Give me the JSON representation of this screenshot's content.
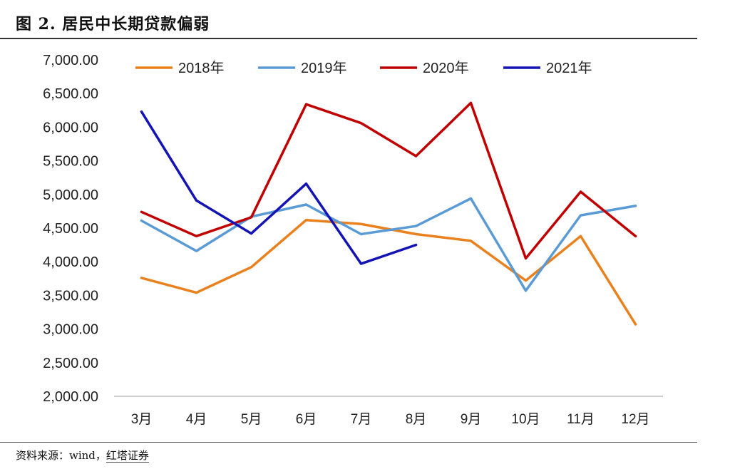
{
  "figure": {
    "title": "图 2. 居民中长期贷款偏弱",
    "source_prefix": "资料来源：wind，",
    "source_brand": "红塔证券"
  },
  "chart_data": {
    "type": "line",
    "title": "",
    "xlabel": "",
    "ylabel": "",
    "categories": [
      "3月",
      "4月",
      "5月",
      "6月",
      "7月",
      "8月",
      "9月",
      "10月",
      "11月",
      "12月"
    ],
    "ylim": [
      2000,
      7000
    ],
    "yticks": [
      2000,
      2500,
      3000,
      3500,
      4000,
      4500,
      5000,
      5500,
      6000,
      6500,
      7000
    ],
    "ytick_labels": [
      "2,000.00",
      "2,500.00",
      "3,000.00",
      "3,500.00",
      "4,000.00",
      "4,500.00",
      "5,000.00",
      "5,500.00",
      "6,000.00",
      "6,500.00",
      "7,000.00"
    ],
    "grid": false,
    "legend_position": "top",
    "series": [
      {
        "name": "2018年",
        "color": "#E8811E",
        "values": [
          3760,
          3540,
          3920,
          4620,
          4560,
          4410,
          4310,
          3720,
          4380,
          3070
        ]
      },
      {
        "name": "2019年",
        "color": "#5B9BD5",
        "values": [
          4610,
          4160,
          4670,
          4850,
          4410,
          4530,
          4940,
          3570,
          4690,
          4830
        ]
      },
      {
        "name": "2020年",
        "color": "#C00000",
        "values": [
          4740,
          4380,
          4660,
          6340,
          6060,
          5570,
          6360,
          4050,
          5040,
          4380
        ]
      },
      {
        "name": "2021年",
        "color": "#1414B4",
        "values": [
          6230,
          4910,
          4420,
          5160,
          3970,
          4250,
          null,
          null,
          null,
          null
        ]
      }
    ]
  }
}
